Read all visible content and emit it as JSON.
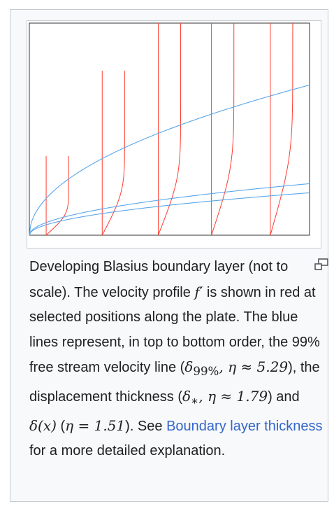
{
  "figure": {
    "caption": {
      "p1": "Developing Blasius boundary layer (not to scale). The velocity profile ",
      "m_fprime": "f′",
      "p2": " is shown in red at selected positions along the plate. The blue lines represent, in top to bottom order, the 99% free stream velocity line (",
      "m_d99": "δ",
      "m_d99_sub": "99%",
      "m_d99_rest": ", η ≈ 5.29",
      "p3": "), the displacement thickness (",
      "m_dstar": "δ",
      "m_dstar_sub": "∗",
      "m_dstar_rest": ", η ≈ 1.79",
      "p4": ") and ",
      "m_dx": "δ(x)",
      "p5": " (",
      "m_eta151": "η = 1.51",
      "p6": "). See ",
      "link_text": "Boundary layer thickness",
      "p7": " for a more detailed explanation."
    },
    "enlarge_icon": "magnify-clip-icon"
  },
  "chart_data": {
    "type": "line",
    "title": "",
    "xlabel": "",
    "ylabel": "",
    "xlim": [
      0,
      1
    ],
    "ylim": [
      0,
      1
    ],
    "grid": false,
    "colors": {
      "profile": "#ff3b30",
      "thickness": "#5aa6ea"
    },
    "blue_series": [
      {
        "eta": 5.29,
        "k": 0.708
      },
      {
        "eta": 1.79,
        "k": 0.243
      },
      {
        "eta": 1.51,
        "k": 0.2
      }
    ],
    "profile_stations": [
      0.06,
      0.26,
      0.46,
      0.65,
      0.86
    ],
    "profile_velocity_scale": 0.08
  }
}
